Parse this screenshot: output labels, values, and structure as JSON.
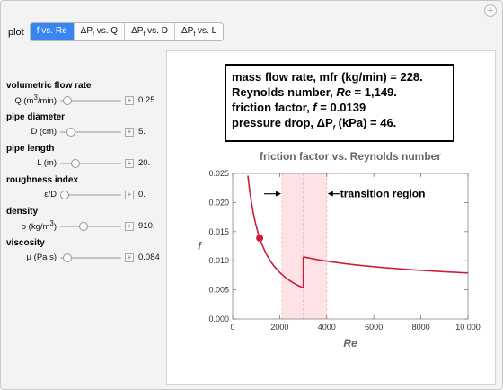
{
  "plot_selector": {
    "label": "plot",
    "tabs": [
      {
        "main": "f vs. Re",
        "sub": "",
        "rest": "",
        "active": true
      },
      {
        "main": "ΔP",
        "sub": "f",
        "rest": " vs. Q",
        "active": false
      },
      {
        "main": "ΔP",
        "sub": "f",
        "rest": " vs. D",
        "active": false
      },
      {
        "main": "ΔP",
        "sub": "f",
        "rest": " vs. L",
        "active": false
      }
    ]
  },
  "controls": [
    {
      "title": "volumetric flow rate",
      "label_html": "Q (m<sup>3</sup>/min)",
      "value": "0.25",
      "position": 0.05
    },
    {
      "title": "pipe diameter",
      "label_html": "D (cm)",
      "value": "5.",
      "position": 0.12
    },
    {
      "title": "pipe length",
      "label_html": "L (m)",
      "value": "20.",
      "position": 0.2
    },
    {
      "title": "roughness index",
      "label_html": "ε/D",
      "value": "0.",
      "position": 0.0
    },
    {
      "title": "density",
      "label_html": "ρ (kg/m<sup>3</sup>)",
      "value": "910.",
      "position": 0.36
    },
    {
      "title": "viscosity",
      "label_html": "μ (Pa s)",
      "value": "0.084",
      "position": 0.05
    }
  ],
  "results": {
    "line1": "mass flow rate, mfr (kg/min) = 228.",
    "line2_pre": "Reynolds number, ",
    "line2_sym": "Re",
    "line2_post": " = 1,149.",
    "line3_pre": "friction factor, ",
    "line3_sym": "f",
    "line3_post": " = 0.0139",
    "line4_pre": "pressure drop, ΔP",
    "line4_sub": "f",
    "line4_post": " (kPa) = 46."
  },
  "chart_data": {
    "type": "line",
    "title": "friction factor vs. Reynolds number",
    "xlabel": "Re",
    "ylabel": "f",
    "xlim": [
      0,
      10000
    ],
    "ylim": [
      0,
      0.025
    ],
    "xticks": [
      0,
      2000,
      4000,
      6000,
      8000,
      10000
    ],
    "xtick_labels": [
      "0",
      "2000",
      "4000",
      "6000",
      "8000",
      "10 000"
    ],
    "yticks": [
      0,
      0.005,
      0.01,
      0.015,
      0.02,
      0.025
    ],
    "ytick_labels": [
      "0.000",
      "0.005",
      "0.010",
      "0.015",
      "0.020",
      "0.025"
    ],
    "transition_region": {
      "x_start": 2100,
      "x_end": 4000,
      "mid": 3000,
      "label": "transition region"
    },
    "laminar_curve": {
      "x_start": 650,
      "x_end": 3000,
      "rule": "f = 16/Re"
    },
    "turbulent_curve": {
      "x_start": 3000,
      "x_end": 10000,
      "rule": "f = 0.079·Re^-0.25"
    },
    "marker": {
      "x": 1149,
      "y": 0.0139
    },
    "curve_color": "#cc1d3a",
    "region_color": "#fde3e6"
  }
}
